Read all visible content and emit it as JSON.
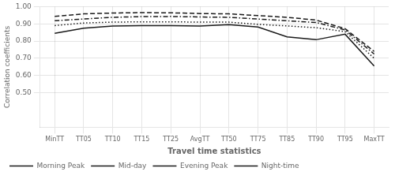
{
  "chart_data": {
    "type": "line",
    "xlabel": "Travel time statistics",
    "ylabel": "Correlation coefficients",
    "categories": [
      "MinTT",
      "TT05",
      "TT10",
      "TT15",
      "TT25",
      "AvgTT",
      "TT50",
      "TT75",
      "TT85",
      "TT90",
      "TT95",
      "MaxTT"
    ],
    "series": [
      {
        "name": "Morning Peak",
        "color": "#1a1a1a",
        "line_style": "dotted",
        "values": [
          0.89,
          0.905,
          0.91,
          0.912,
          0.912,
          0.91,
          0.91,
          0.897,
          0.888,
          0.878,
          0.855,
          0.7
        ]
      },
      {
        "name": "Mid-day",
        "color": "#1a1a1a",
        "line_style": "dashdot",
        "values": [
          0.918,
          0.928,
          0.938,
          0.942,
          0.943,
          0.94,
          0.938,
          0.928,
          0.918,
          0.908,
          0.865,
          0.725
        ]
      },
      {
        "name": "Evening Peak",
        "color": "#1a1a1a",
        "line_style": "solid",
        "values": [
          0.845,
          0.875,
          0.888,
          0.89,
          0.89,
          0.888,
          0.895,
          0.882,
          0.825,
          0.808,
          0.84,
          0.655
        ]
      },
      {
        "name": "Night-time",
        "color": "#1a1a1a",
        "line_style": "dashed",
        "values": [
          0.944,
          0.958,
          0.963,
          0.965,
          0.964,
          0.96,
          0.958,
          0.948,
          0.938,
          0.922,
          0.872,
          0.74
        ]
      }
    ],
    "ylim": [
      0.3,
      1.0
    ],
    "yticks": [
      {
        "value": 0.5,
        "label": "0.50"
      },
      {
        "value": 0.6,
        "label": "0.60"
      },
      {
        "value": 0.7,
        "label": "0.70"
      },
      {
        "value": 0.8,
        "label": "0.80"
      },
      {
        "value": 0.9,
        "label": "0.90"
      },
      {
        "value": 1.0,
        "label": "1.00"
      }
    ],
    "grid": true,
    "legend": "lower left"
  }
}
